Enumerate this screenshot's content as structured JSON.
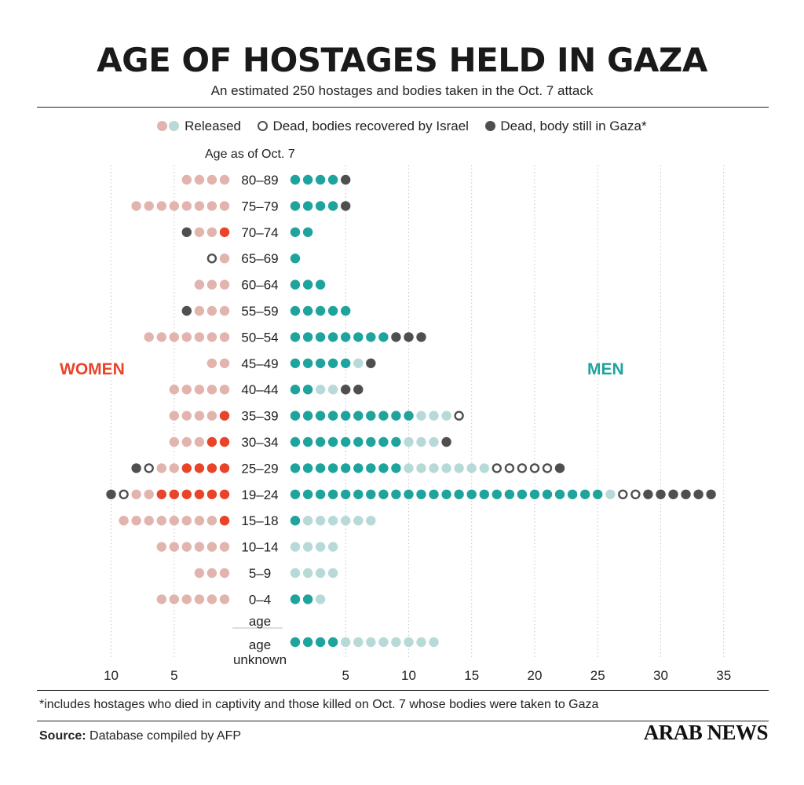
{
  "header": {
    "title": "AGE OF HOSTAGES HELD IN GAZA",
    "subtitle": "An estimated 250 hostages and bodies taken in the Oct. 7 attack"
  },
  "legend": {
    "released": "Released",
    "recovered": "Dead, bodies recovered by Israel",
    "in_gaza": "Dead, body still in Gaza*"
  },
  "age_heading": "Age as of Oct. 7",
  "labels": {
    "women": "WOMEN",
    "men": "MEN"
  },
  "footer": {
    "footnote": "*includes hostages who died in captivity and those killed on Oct. 7 whose bodies were taken to Gaza",
    "source_label": "Source:",
    "source_text": "Database compiled by AFP",
    "brand": "ARAB NEWS"
  },
  "colors": {
    "women_released": "#e2b4ae",
    "women_held": "#e8442a",
    "men_held": "#1fa39d",
    "men_released": "#b7dad8",
    "dead_in_gaza": "#4f4f4f",
    "recovered_ring": "#4f4f4f",
    "women_label": "#e8442a",
    "men_label": "#1fa39d"
  },
  "chart_data": {
    "type": "dot-plot",
    "x_ticks_women": [
      10,
      5
    ],
    "x_ticks_men": [
      5,
      10,
      15,
      20,
      25,
      30,
      35
    ],
    "categories": [
      "80–89",
      "75–79",
      "70–74",
      "65–69",
      "60–64",
      "55–59",
      "50–54",
      "45–49",
      "40–44",
      "35–39",
      "30–34",
      "25–29",
      "19–24",
      "15–18",
      "10–14",
      "5–9",
      "0–4",
      "age unknown"
    ],
    "series_keys": [
      "held",
      "released",
      "recovered",
      "in_gaza"
    ],
    "women": [
      {
        "age": "80–89",
        "held": 0,
        "released": 4,
        "recovered": 0,
        "in_gaza": 0
      },
      {
        "age": "75–79",
        "held": 0,
        "released": 8,
        "recovered": 0,
        "in_gaza": 0
      },
      {
        "age": "70–74",
        "held": 1,
        "released": 2,
        "recovered": 0,
        "in_gaza": 1
      },
      {
        "age": "65–69",
        "held": 0,
        "released": 1,
        "recovered": 1,
        "in_gaza": 0
      },
      {
        "age": "60–64",
        "held": 0,
        "released": 3,
        "recovered": 0,
        "in_gaza": 0
      },
      {
        "age": "55–59",
        "held": 0,
        "released": 3,
        "recovered": 0,
        "in_gaza": 1
      },
      {
        "age": "50–54",
        "held": 0,
        "released": 7,
        "recovered": 0,
        "in_gaza": 0
      },
      {
        "age": "45–49",
        "held": 0,
        "released": 2,
        "recovered": 0,
        "in_gaza": 0
      },
      {
        "age": "40–44",
        "held": 0,
        "released": 5,
        "recovered": 0,
        "in_gaza": 0
      },
      {
        "age": "35–39",
        "held": 1,
        "released": 4,
        "recovered": 0,
        "in_gaza": 0
      },
      {
        "age": "30–34",
        "held": 2,
        "released": 3,
        "recovered": 0,
        "in_gaza": 0
      },
      {
        "age": "25–29",
        "held": 4,
        "released": 2,
        "recovered": 1,
        "in_gaza": 1
      },
      {
        "age": "19–24",
        "held": 6,
        "released": 2,
        "recovered": 1,
        "in_gaza": 1
      },
      {
        "age": "15–18",
        "held": 1,
        "released": 8,
        "recovered": 0,
        "in_gaza": 0
      },
      {
        "age": "10–14",
        "held": 0,
        "released": 6,
        "recovered": 0,
        "in_gaza": 0
      },
      {
        "age": "5–9",
        "held": 0,
        "released": 3,
        "recovered": 0,
        "in_gaza": 0
      },
      {
        "age": "0–4",
        "held": 0,
        "released": 6,
        "recovered": 0,
        "in_gaza": 0
      },
      {
        "age": "age unknown",
        "held": 0,
        "released": 0,
        "recovered": 0,
        "in_gaza": 0
      }
    ],
    "men": [
      {
        "age": "80–89",
        "held": 4,
        "released": 0,
        "recovered": 0,
        "in_gaza": 1
      },
      {
        "age": "75–79",
        "held": 4,
        "released": 0,
        "recovered": 0,
        "in_gaza": 1
      },
      {
        "age": "70–74",
        "held": 2,
        "released": 0,
        "recovered": 0,
        "in_gaza": 0
      },
      {
        "age": "65–69",
        "held": 1,
        "released": 0,
        "recovered": 0,
        "in_gaza": 0
      },
      {
        "age": "60–64",
        "held": 3,
        "released": 0,
        "recovered": 0,
        "in_gaza": 0
      },
      {
        "age": "55–59",
        "held": 5,
        "released": 0,
        "recovered": 0,
        "in_gaza": 0
      },
      {
        "age": "50–54",
        "held": 8,
        "released": 0,
        "recovered": 0,
        "in_gaza": 3
      },
      {
        "age": "45–49",
        "held": 5,
        "released": 1,
        "recovered": 0,
        "in_gaza": 1
      },
      {
        "age": "40–44",
        "held": 2,
        "released": 2,
        "recovered": 0,
        "in_gaza": 2
      },
      {
        "age": "35–39",
        "held": 10,
        "released": 3,
        "recovered": 1,
        "in_gaza": 0
      },
      {
        "age": "30–34",
        "held": 9,
        "released": 3,
        "recovered": 0,
        "in_gaza": 1
      },
      {
        "age": "25–29",
        "held": 9,
        "released": 7,
        "recovered": 5,
        "in_gaza": 1
      },
      {
        "age": "19–24",
        "held": 25,
        "released": 1,
        "recovered": 2,
        "in_gaza": 6
      },
      {
        "age": "15–18",
        "held": 1,
        "released": 6,
        "recovered": 0,
        "in_gaza": 0
      },
      {
        "age": "10–14",
        "held": 0,
        "released": 4,
        "recovered": 0,
        "in_gaza": 0
      },
      {
        "age": "5–9",
        "held": 0,
        "released": 4,
        "recovered": 0,
        "in_gaza": 0
      },
      {
        "age": "0–4",
        "held": 2,
        "released": 1,
        "recovered": 0,
        "in_gaza": 0
      },
      {
        "age": "age unknown",
        "held": 4,
        "released": 8,
        "recovered": 0,
        "in_gaza": 0
      }
    ]
  }
}
